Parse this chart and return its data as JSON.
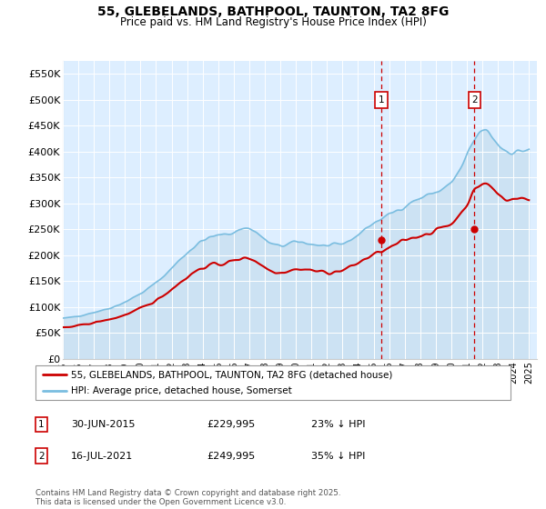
{
  "title": "55, GLEBELANDS, BATHPOOL, TAUNTON, TA2 8FG",
  "subtitle": "Price paid vs. HM Land Registry's House Price Index (HPI)",
  "hpi_label": "HPI: Average price, detached house, Somerset",
  "property_label": "55, GLEBELANDS, BATHPOOL, TAUNTON, TA2 8FG (detached house)",
  "footnote": "Contains HM Land Registry data © Crown copyright and database right 2025.\nThis data is licensed under the Open Government Licence v3.0.",
  "annotation1": {
    "label": "1",
    "date": "30-JUN-2015",
    "price": 229995,
    "pct": "23% ↓ HPI"
  },
  "annotation2": {
    "label": "2",
    "date": "16-JUL-2021",
    "price": 249995,
    "pct": "35% ↓ HPI"
  },
  "hpi_color": "#7abde0",
  "hpi_fill_color": "#c8e0f0",
  "property_color": "#cc0000",
  "annotation_color": "#cc0000",
  "plot_bg_color": "#ddeeff",
  "ylim": [
    0,
    575000
  ],
  "yticks": [
    0,
    50000,
    100000,
    150000,
    200000,
    250000,
    300000,
    350000,
    400000,
    450000,
    500000,
    550000
  ],
  "ytick_labels": [
    "£0",
    "£50K",
    "£100K",
    "£150K",
    "£200K",
    "£250K",
    "£300K",
    "£350K",
    "£400K",
    "£450K",
    "£500K",
    "£550K"
  ],
  "ann1_x": 2015.5,
  "ann2_x": 2021.5,
  "ann1_price": 229995,
  "ann2_price": 249995,
  "xmin": 1995.0,
  "xmax": 2025.5
}
